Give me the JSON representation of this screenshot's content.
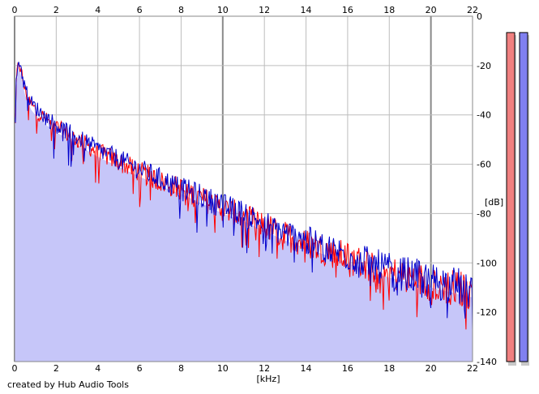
{
  "chart_data": {
    "type": "line",
    "title": "",
    "xlabel": "[kHz]",
    "ylabel": "[dB]",
    "xlim": [
      0,
      22
    ],
    "ylim": [
      -140,
      0
    ],
    "x_ticks": [
      "0",
      "2",
      "4",
      "6",
      "8",
      "10",
      "12",
      "14",
      "16",
      "18",
      "20",
      "22"
    ],
    "y_ticks": [
      "0",
      "-20",
      "-40",
      "-60",
      "-80",
      "-100",
      "-120",
      "-140"
    ],
    "grid": true,
    "series": [
      {
        "color": "#ff0000",
        "x": [
          0,
          0.1,
          0.2,
          0.3,
          0.5,
          0.8,
          1,
          1.5,
          2,
          3,
          4,
          5,
          6,
          7,
          8,
          9,
          10,
          11,
          12,
          13,
          14,
          15,
          16,
          17,
          18,
          19,
          20,
          21,
          22
        ],
        "y": [
          -40,
          -25,
          -18,
          -22,
          -30,
          -36,
          -38,
          -42,
          -45,
          -50,
          -55,
          -59,
          -63,
          -67,
          -70,
          -74,
          -78,
          -81,
          -85,
          -89,
          -92,
          -95,
          -98,
          -101,
          -104,
          -106,
          -108,
          -110,
          -112
        ]
      },
      {
        "color": "#0000cc",
        "x": [
          0,
          0.1,
          0.2,
          0.3,
          0.5,
          0.8,
          1,
          1.5,
          2,
          3,
          4,
          5,
          6,
          7,
          8,
          9,
          10,
          11,
          12,
          13,
          14,
          15,
          16,
          17,
          18,
          19,
          20,
          21,
          22
        ],
        "y": [
          -38,
          -24,
          -17,
          -21,
          -29,
          -35,
          -37,
          -41,
          -44,
          -49,
          -54,
          -58,
          -62,
          -66,
          -70,
          -73,
          -77,
          -80,
          -84,
          -88,
          -91,
          -94,
          -97,
          -100,
          -103,
          -105,
          -107,
          -109,
          -111
        ]
      }
    ],
    "level_meters": [
      {
        "color": "#f08080",
        "level_db": -6
      },
      {
        "color": "#8080f0",
        "level_db": -6
      }
    ]
  },
  "credit": "created by Hub Audio Tools",
  "colors": {
    "fill": "#c6c6f9",
    "grid": "#bdbdbd",
    "grid_major": "#8a8a8a"
  }
}
